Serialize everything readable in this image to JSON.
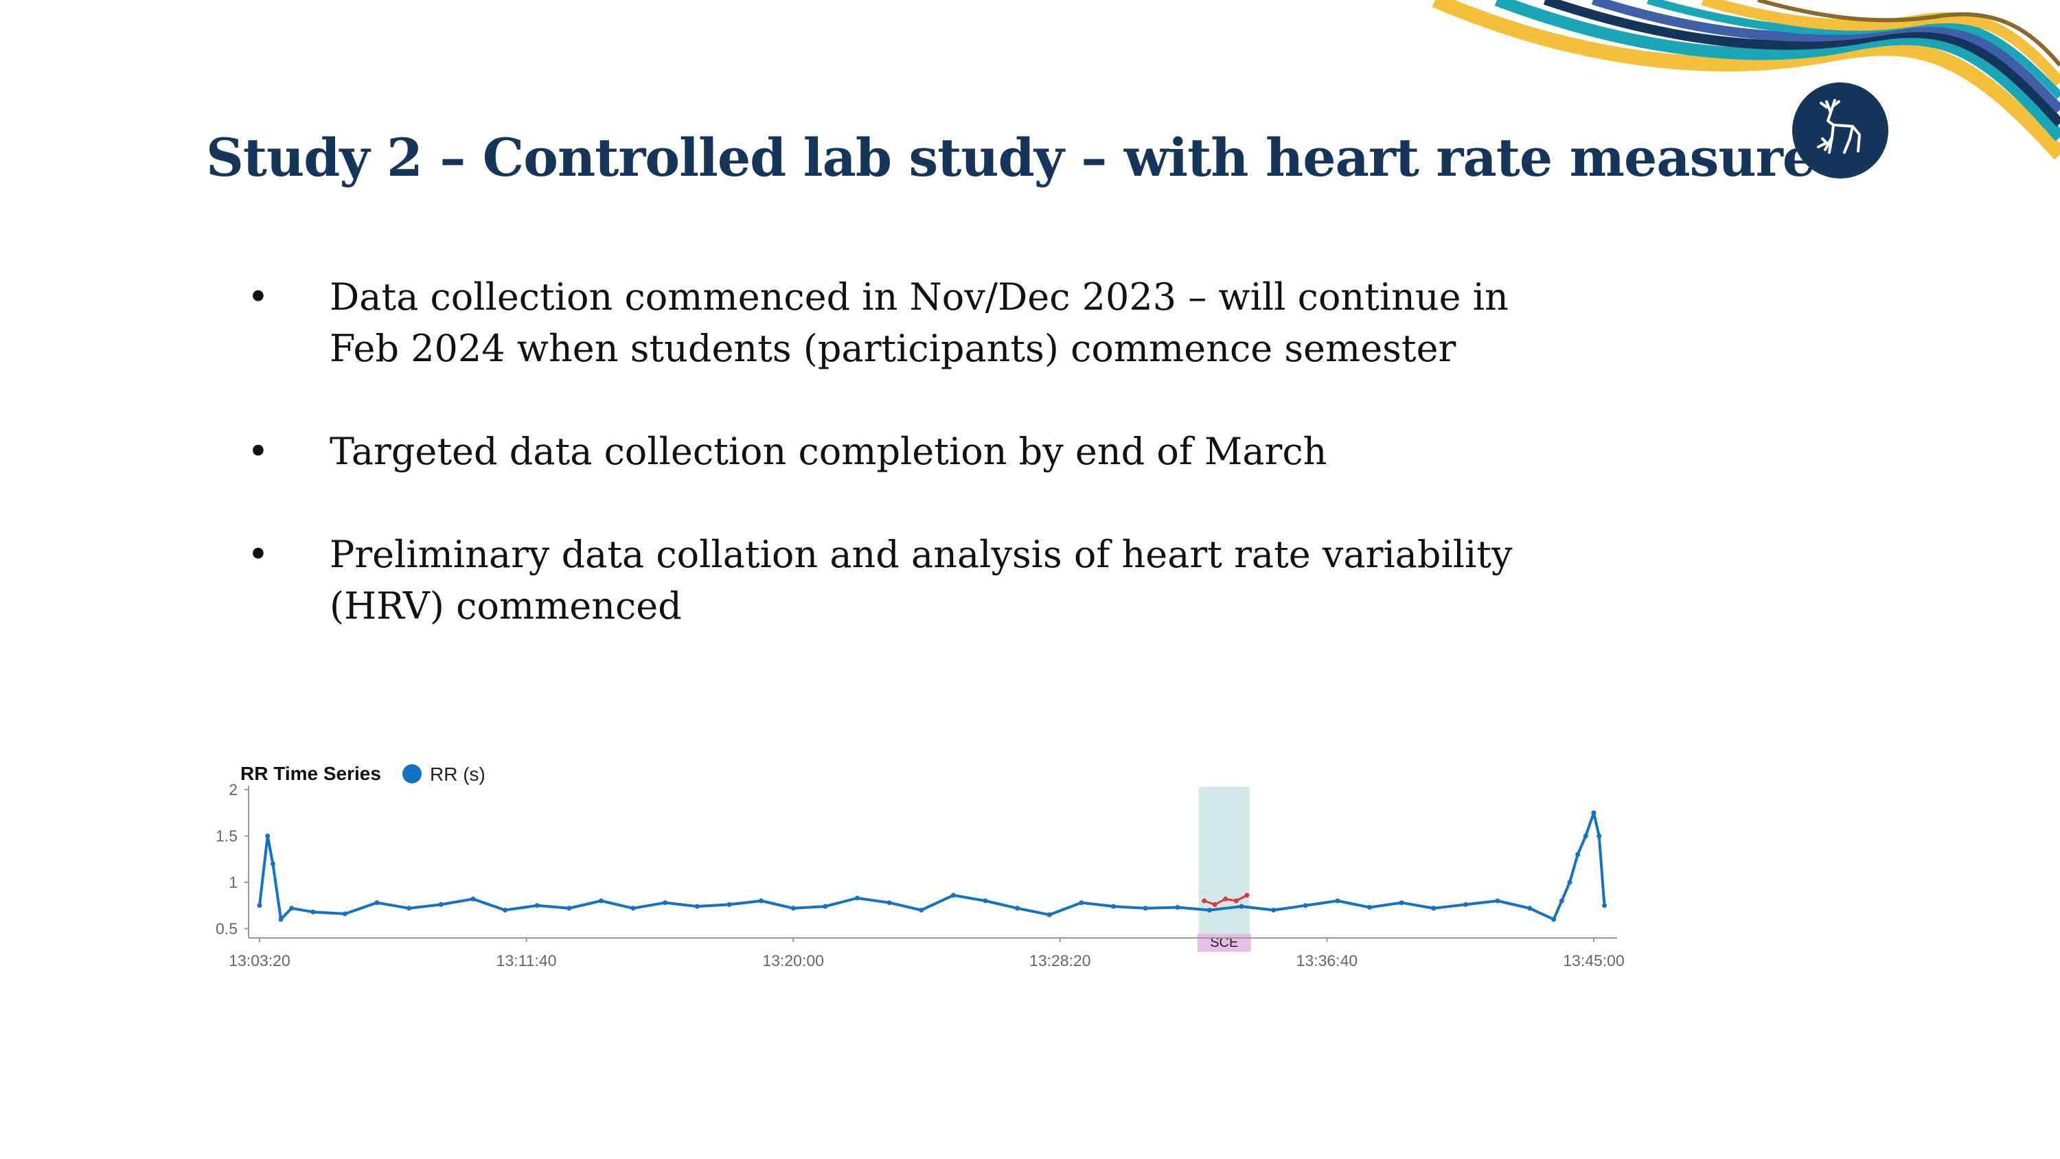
{
  "slide": {
    "title": "Study 2 – Controlled lab study – with heart rate measure",
    "bullet_symbol": "•",
    "bullets": [
      "Data collection commenced in Nov/Dec 2023 – will continue in Feb 2024 when students (participants) commence semester",
      "Targeted data collection completion by end of March",
      "Preliminary data collation and analysis of heart rate variability (HRV) commenced"
    ]
  },
  "colors": {
    "title": "#15355a",
    "series": "#1472c4",
    "highlight_series": "#d63a3a",
    "event_band": "#d4e8ea",
    "event_label_bg": "#e6bde6",
    "logo_bg": "#15355a"
  },
  "logo": {
    "icon": "stag-emblem-icon"
  },
  "chart_data": {
    "type": "line",
    "title": "RR Time Series",
    "xlabel": "",
    "ylabel": "",
    "x_range": [
      "13:03:20",
      "13:45:00"
    ],
    "x_ticks": [
      "13:03:20",
      "13:11:40",
      "13:20:00",
      "13:28:20",
      "13:36:40",
      "13:45:00"
    ],
    "ylim": [
      0.4,
      2
    ],
    "y_ticks": [
      0.5,
      1,
      1.5,
      2
    ],
    "grid": false,
    "legend": {
      "position": "top-left",
      "marker": "circle"
    },
    "series": [
      {
        "name": "RR (s)",
        "x": [
          "13:03:20",
          "13:03:35",
          "13:03:45",
          "13:04:00",
          "13:04:20",
          "13:05:00",
          "13:06:00",
          "13:07:00",
          "13:08:00",
          "13:09:00",
          "13:10:00",
          "13:11:00",
          "13:12:00",
          "13:13:00",
          "13:14:00",
          "13:15:00",
          "13:16:00",
          "13:17:00",
          "13:18:00",
          "13:19:00",
          "13:20:00",
          "13:21:00",
          "13:22:00",
          "13:23:00",
          "13:24:00",
          "13:25:00",
          "13:26:00",
          "13:27:00",
          "13:28:00",
          "13:29:00",
          "13:30:00",
          "13:31:00",
          "13:32:00",
          "13:33:00",
          "13:34:00",
          "13:35:00",
          "13:36:00",
          "13:37:00",
          "13:38:00",
          "13:39:00",
          "13:40:00",
          "13:41:00",
          "13:42:00",
          "13:43:00",
          "13:43:45",
          "13:44:00",
          "13:44:15",
          "13:44:30",
          "13:44:45",
          "13:45:00",
          "13:45:10",
          "13:45:20"
        ],
        "values": [
          0.75,
          1.5,
          1.2,
          0.6,
          0.72,
          0.68,
          0.66,
          0.78,
          0.72,
          0.76,
          0.82,
          0.7,
          0.75,
          0.72,
          0.8,
          0.72,
          0.78,
          0.74,
          0.76,
          0.8,
          0.72,
          0.74,
          0.83,
          0.78,
          0.7,
          0.86,
          0.8,
          0.72,
          0.65,
          0.78,
          0.74,
          0.72,
          0.73,
          0.7,
          0.74,
          0.7,
          0.75,
          0.8,
          0.73,
          0.78,
          0.72,
          0.76,
          0.8,
          0.72,
          0.6,
          0.8,
          1.0,
          1.3,
          1.5,
          1.75,
          1.5,
          0.75
        ]
      },
      {
        "name": "",
        "x": [
          "13:32:50",
          "13:33:10",
          "13:33:30",
          "13:33:50",
          "13:34:10"
        ],
        "values": [
          0.8,
          0.76,
          0.82,
          0.8,
          0.86
        ]
      }
    ],
    "annotations": [
      {
        "type": "band",
        "x_start": "13:32:40",
        "x_end": "13:34:15",
        "label": "SCE"
      }
    ]
  }
}
